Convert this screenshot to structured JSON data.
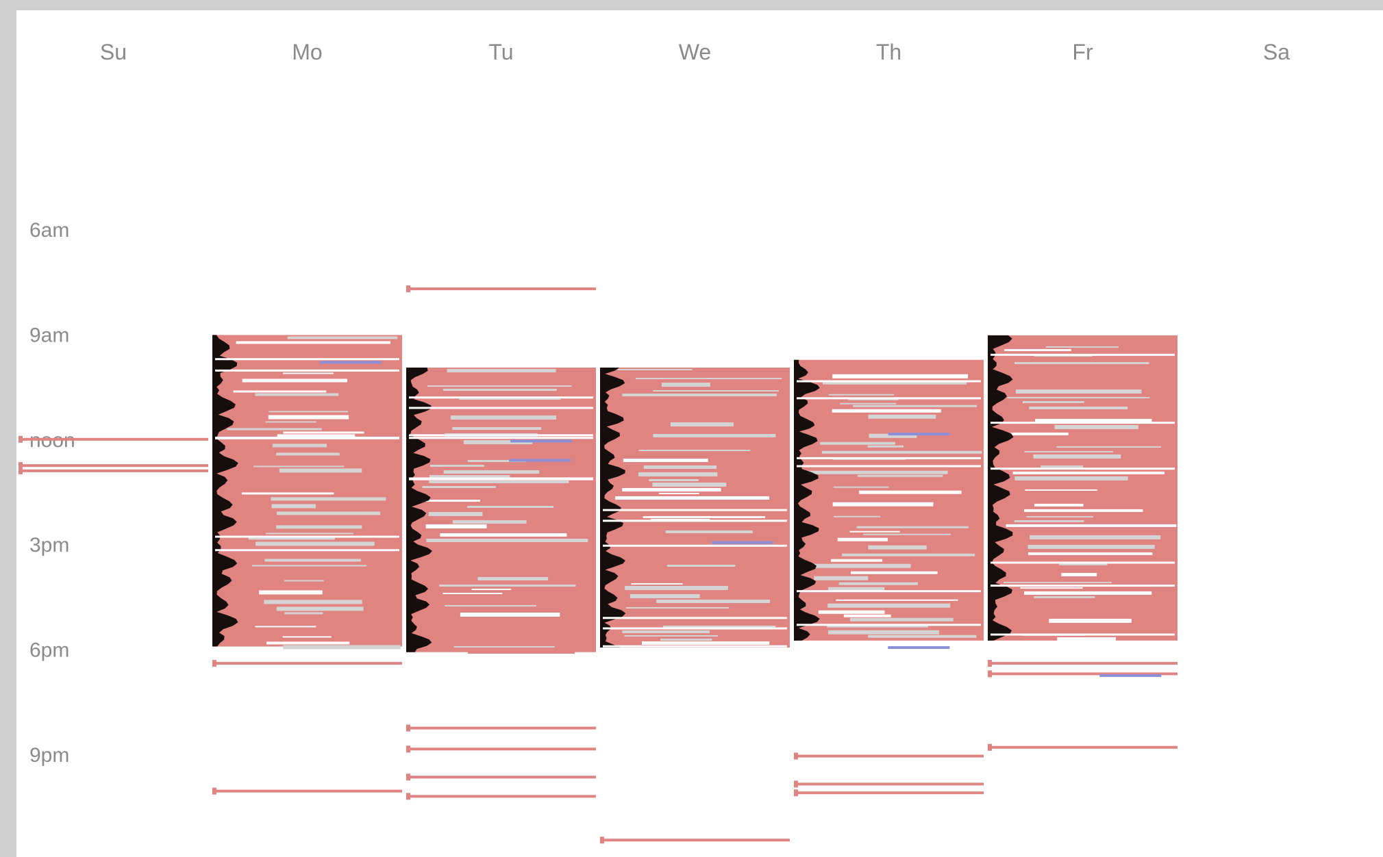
{
  "chart_data": {
    "type": "heatmap",
    "title": "",
    "days": [
      "Su",
      "Mo",
      "Tu",
      "We",
      "Th",
      "Fr",
      "Sa"
    ],
    "time_labels": [
      "6am",
      "9am",
      "noon",
      "3pm",
      "6pm",
      "9pm"
    ],
    "time_label_hours": [
      6,
      9,
      12,
      15,
      18,
      21
    ],
    "hour_range": [
      1,
      23.75
    ],
    "colors": {
      "activity": "#e08482",
      "background_session": "#d4d4d4",
      "highlight": "#8b8fd8",
      "profile": "#000000",
      "frame": "#cfcfcf",
      "text": "#8a8a8a"
    },
    "active_blocks": [
      {
        "day": "Mo",
        "start": 9.02,
        "end": 17.92
      },
      {
        "day": "Tu",
        "start": 9.95,
        "end": 18.08
      },
      {
        "day": "We",
        "start": 9.95,
        "end": 17.95
      },
      {
        "day": "Th",
        "start": 9.73,
        "end": 17.75
      },
      {
        "day": "Fr",
        "start": 9.03,
        "end": 17.75
      }
    ],
    "isolated_sessions": [
      {
        "day": "Su",
        "hour": 12.0,
        "width": 1.0
      },
      {
        "day": "Su",
        "hour": 12.75,
        "width": 1.0
      },
      {
        "day": "Su",
        "hour": 12.9,
        "width": 1.0
      },
      {
        "day": "Mo",
        "hour": 18.4,
        "width": 1.0
      },
      {
        "day": "Mo",
        "hour": 22.05,
        "width": 1.0
      },
      {
        "day": "Tu",
        "hour": 7.7,
        "width": 1.0
      },
      {
        "day": "Tu",
        "hour": 20.25,
        "width": 1.0
      },
      {
        "day": "Tu",
        "hour": 20.85,
        "width": 1.0
      },
      {
        "day": "Tu",
        "hour": 21.65,
        "width": 1.0
      },
      {
        "day": "Tu",
        "hour": 22.2,
        "width": 1.0
      },
      {
        "day": "We",
        "hour": 23.45,
        "width": 1.0
      },
      {
        "day": "Th",
        "hour": 21.05,
        "width": 1.0
      },
      {
        "day": "Th",
        "hour": 21.85,
        "width": 1.0
      },
      {
        "day": "Th",
        "hour": 22.1,
        "width": 1.0
      },
      {
        "day": "Fr",
        "hour": 18.4,
        "width": 1.0
      },
      {
        "day": "Fr",
        "hour": 18.7,
        "width": 1.0
      },
      {
        "day": "Fr",
        "hour": 20.8,
        "width": 1.0
      }
    ],
    "highlight_sessions": [
      {
        "day": "Mo",
        "hour": 9.8
      },
      {
        "day": "Tu",
        "hour": 12.05
      },
      {
        "day": "Tu",
        "hour": 12.6
      },
      {
        "day": "We",
        "hour": 14.95
      },
      {
        "day": "Th",
        "hour": 11.85
      },
      {
        "day": "Th",
        "hour": 17.95
      },
      {
        "day": "Fr",
        "hour": 18.75
      }
    ]
  }
}
